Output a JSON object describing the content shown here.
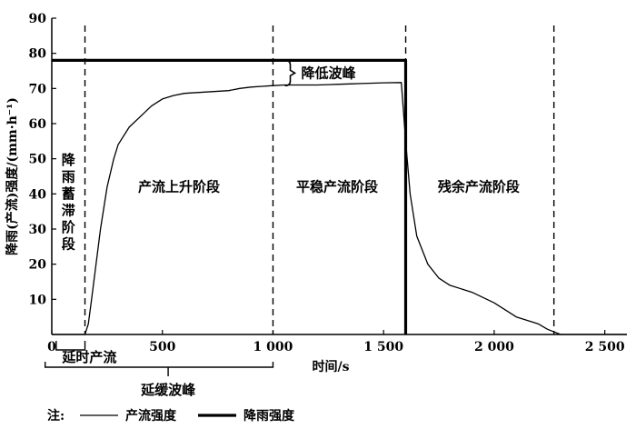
{
  "chart_data": {
    "type": "line",
    "xlabel": "时间/s",
    "ylabel": "降雨(产流)强度/(mm·h⁻¹)",
    "xlim": [
      0,
      2600
    ],
    "ylim": [
      0,
      90
    ],
    "x_ticks": [
      {
        "value": 0,
        "label": "0"
      },
      {
        "value": 500,
        "label": "500"
      },
      {
        "value": 1000,
        "label": "1 000"
      },
      {
        "value": 1500,
        "label": "1 500"
      },
      {
        "value": 2000,
        "label": "2 000"
      },
      {
        "value": 2500,
        "label": "2 500"
      }
    ],
    "y_ticks": [
      {
        "value": 10,
        "label": "10"
      },
      {
        "value": 20,
        "label": "20"
      },
      {
        "value": 30,
        "label": "30"
      },
      {
        "value": 40,
        "label": "40"
      },
      {
        "value": 50,
        "label": "50"
      },
      {
        "value": 60,
        "label": "60"
      },
      {
        "value": 70,
        "label": "70"
      },
      {
        "value": 80,
        "label": "80"
      },
      {
        "value": 90,
        "label": "90"
      }
    ],
    "series": [
      {
        "name": "产流强度",
        "style": "thin",
        "x": [
          0,
          150,
          165,
          180,
          200,
          220,
          250,
          280,
          300,
          350,
          400,
          450,
          500,
          550,
          600,
          700,
          800,
          850,
          900,
          950,
          1000,
          1050,
          1100,
          1150,
          1200,
          1250,
          1300,
          1350,
          1400,
          1450,
          1500,
          1580,
          1600,
          1620,
          1650,
          1700,
          1750,
          1800,
          1900,
          2000,
          2100,
          2200,
          2240,
          2300,
          2600
        ],
        "y": [
          0,
          0,
          3,
          10,
          20,
          30,
          42,
          50,
          54,
          59,
          62,
          65,
          67,
          68,
          68.6,
          69,
          69.4,
          70,
          70.4,
          70.6,
          70.8,
          71,
          71,
          71,
          71,
          71.1,
          71.2,
          71.3,
          71.4,
          71.5,
          71.6,
          71.7,
          55,
          40,
          28,
          20,
          16,
          14,
          12,
          9,
          5,
          3,
          1.5,
          0,
          0
        ]
      },
      {
        "name": "降雨强度",
        "style": "thick",
        "x": [
          0,
          1600,
          1600
        ],
        "y": [
          78,
          78,
          0
        ]
      }
    ],
    "phase_dividers": [
      150,
      1000,
      1600,
      2270
    ],
    "phase_labels": [
      {
        "label": "降雨蓄滞阶段",
        "x": 75,
        "y": 38,
        "vertical": true
      },
      {
        "label": "产流上升阶段",
        "x": 575,
        "y": 42
      },
      {
        "label": "平稳产流阶段",
        "x": 1290,
        "y": 42
      },
      {
        "label": "残余产流阶段",
        "x": 1930,
        "y": 42
      }
    ],
    "annotations": {
      "peak_reduction": "降低波峰",
      "delayed_flow": "延时产流",
      "delayed_peak": "延缓波峰"
    },
    "grid": false,
    "legend": {
      "prefix": "注:",
      "items": [
        {
          "label": "产流强度",
          "style": "thin"
        },
        {
          "label": "降雨强度",
          "style": "thick"
        }
      ]
    }
  }
}
